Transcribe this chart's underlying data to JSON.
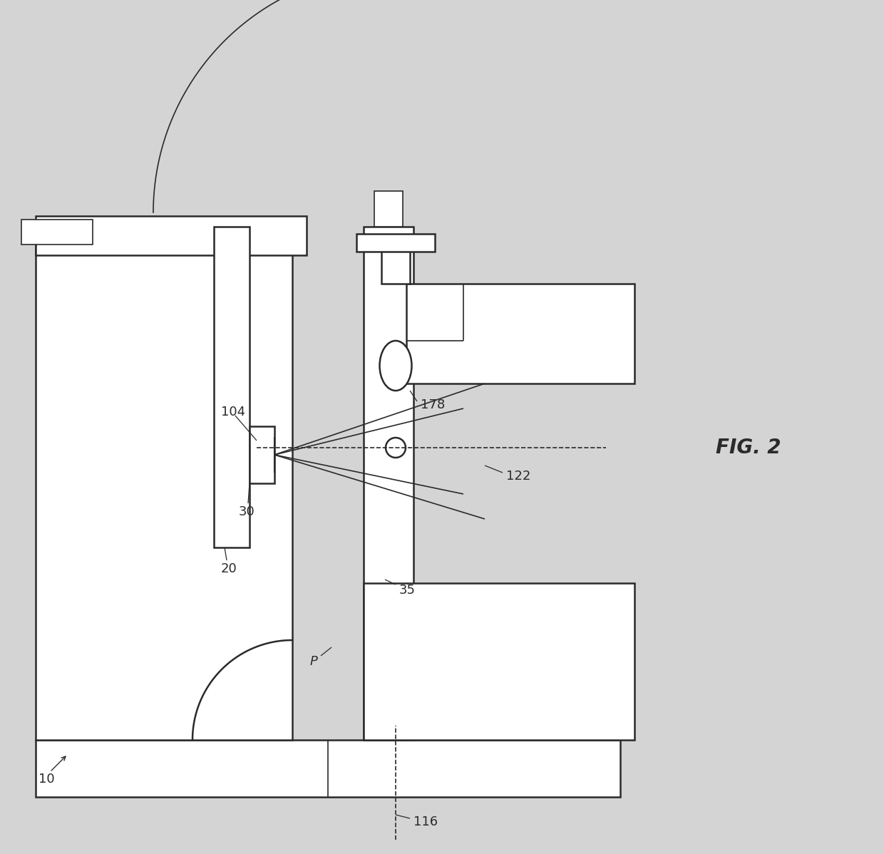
{
  "background_color": "#d4d4d4",
  "line_color": "#2a2a2a",
  "white": "#ffffff",
  "fig_label": "FIG. 2",
  "lw_thin": 1.2,
  "lw_med": 1.8,
  "lw_thick": 2.2
}
